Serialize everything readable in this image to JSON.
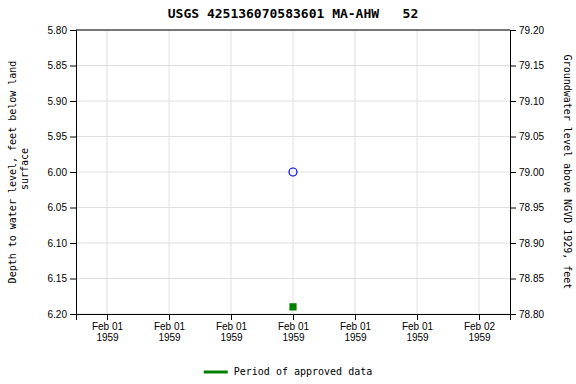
{
  "chart_data": {
    "type": "scatter",
    "title": "USGS 425136070583601 MA-AHW   52",
    "y_label": "Depth to water level, feet below land\n surface",
    "y2_label": "Groundwater level above NGVD 1929, feet",
    "categories": [
      "Feb 01\n1959",
      "Feb 01\n1959",
      "Feb 01\n1959",
      "Feb 01\n1959",
      "Feb 01\n1959",
      "Feb 01\n1959",
      "Feb 02\n1959"
    ],
    "series": [
      {
        "color": "#0000ff",
        "marker": "circle",
        "values": [
          null,
          null,
          null,
          6.0,
          null,
          null,
          null
        ]
      },
      {
        "name": "Period of approved data",
        "color": "#008000",
        "marker": "square",
        "values": [
          null,
          null,
          null,
          6.19,
          null,
          null,
          null
        ]
      }
    ],
    "ylim": [
      6.2,
      5.8
    ],
    "yticks": [
      {
        "value": 5.8,
        "label": "5.80"
      },
      5.85,
      {
        "value": 5.9,
        "label": "5.90"
      },
      5.95,
      {
        "value": 6.0,
        "label": "6.00"
      },
      6.05,
      {
        "value": 6.1,
        "label": "6.10"
      },
      6.15,
      {
        "value": 6.2,
        "label": "6.20"
      }
    ],
    "y2lim": [
      78.8,
      79.2
    ],
    "y2ticks": [
      {
        "value": 79.2,
        "label": "79.20"
      },
      79.15,
      {
        "value": 79.1,
        "label": "79.10"
      },
      79.05,
      {
        "value": 79.0,
        "label": "79.00"
      },
      78.95,
      {
        "value": 78.9,
        "label": "78.90"
      },
      78.85,
      {
        "value": 78.8,
        "label": "78.80"
      }
    ],
    "grid": true,
    "legend": "bottom"
  }
}
